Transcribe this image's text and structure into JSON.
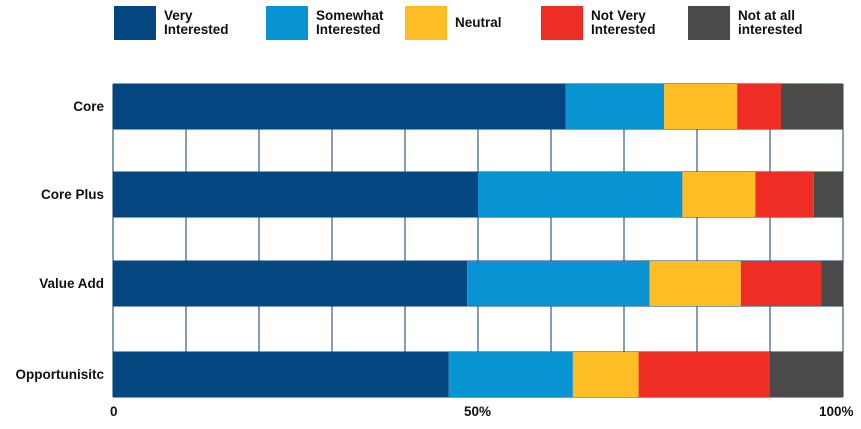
{
  "chart_data": {
    "type": "bar",
    "orientation": "horizontal",
    "stacked": true,
    "normalized_percent": true,
    "categories": [
      "Core",
      "Core Plus",
      "Value Add",
      "Opportunisitc"
    ],
    "series": [
      {
        "name": "Very\nInterested",
        "color": "#034680",
        "values": [
          62,
          50,
          48.5,
          46
        ]
      },
      {
        "name": "Somewhat\nInterested",
        "color": "#0894d2",
        "values": [
          13.5,
          28,
          25,
          17
        ]
      },
      {
        "name": "Neutral",
        "color": "#fdbe25",
        "values": [
          10,
          10,
          12.5,
          9
        ]
      },
      {
        "name": "Not Very\nInterested",
        "color": "#ee2e24",
        "values": [
          6,
          8,
          11,
          18
        ]
      },
      {
        "name": "Not at all\ninterested",
        "color": "#4a4a4a",
        "values": [
          8.5,
          4,
          3,
          10
        ]
      }
    ],
    "x_ticks": [
      "0",
      "50%",
      "100%"
    ],
    "xlim": [
      0,
      100
    ],
    "grid": true,
    "legend_position": "top"
  }
}
